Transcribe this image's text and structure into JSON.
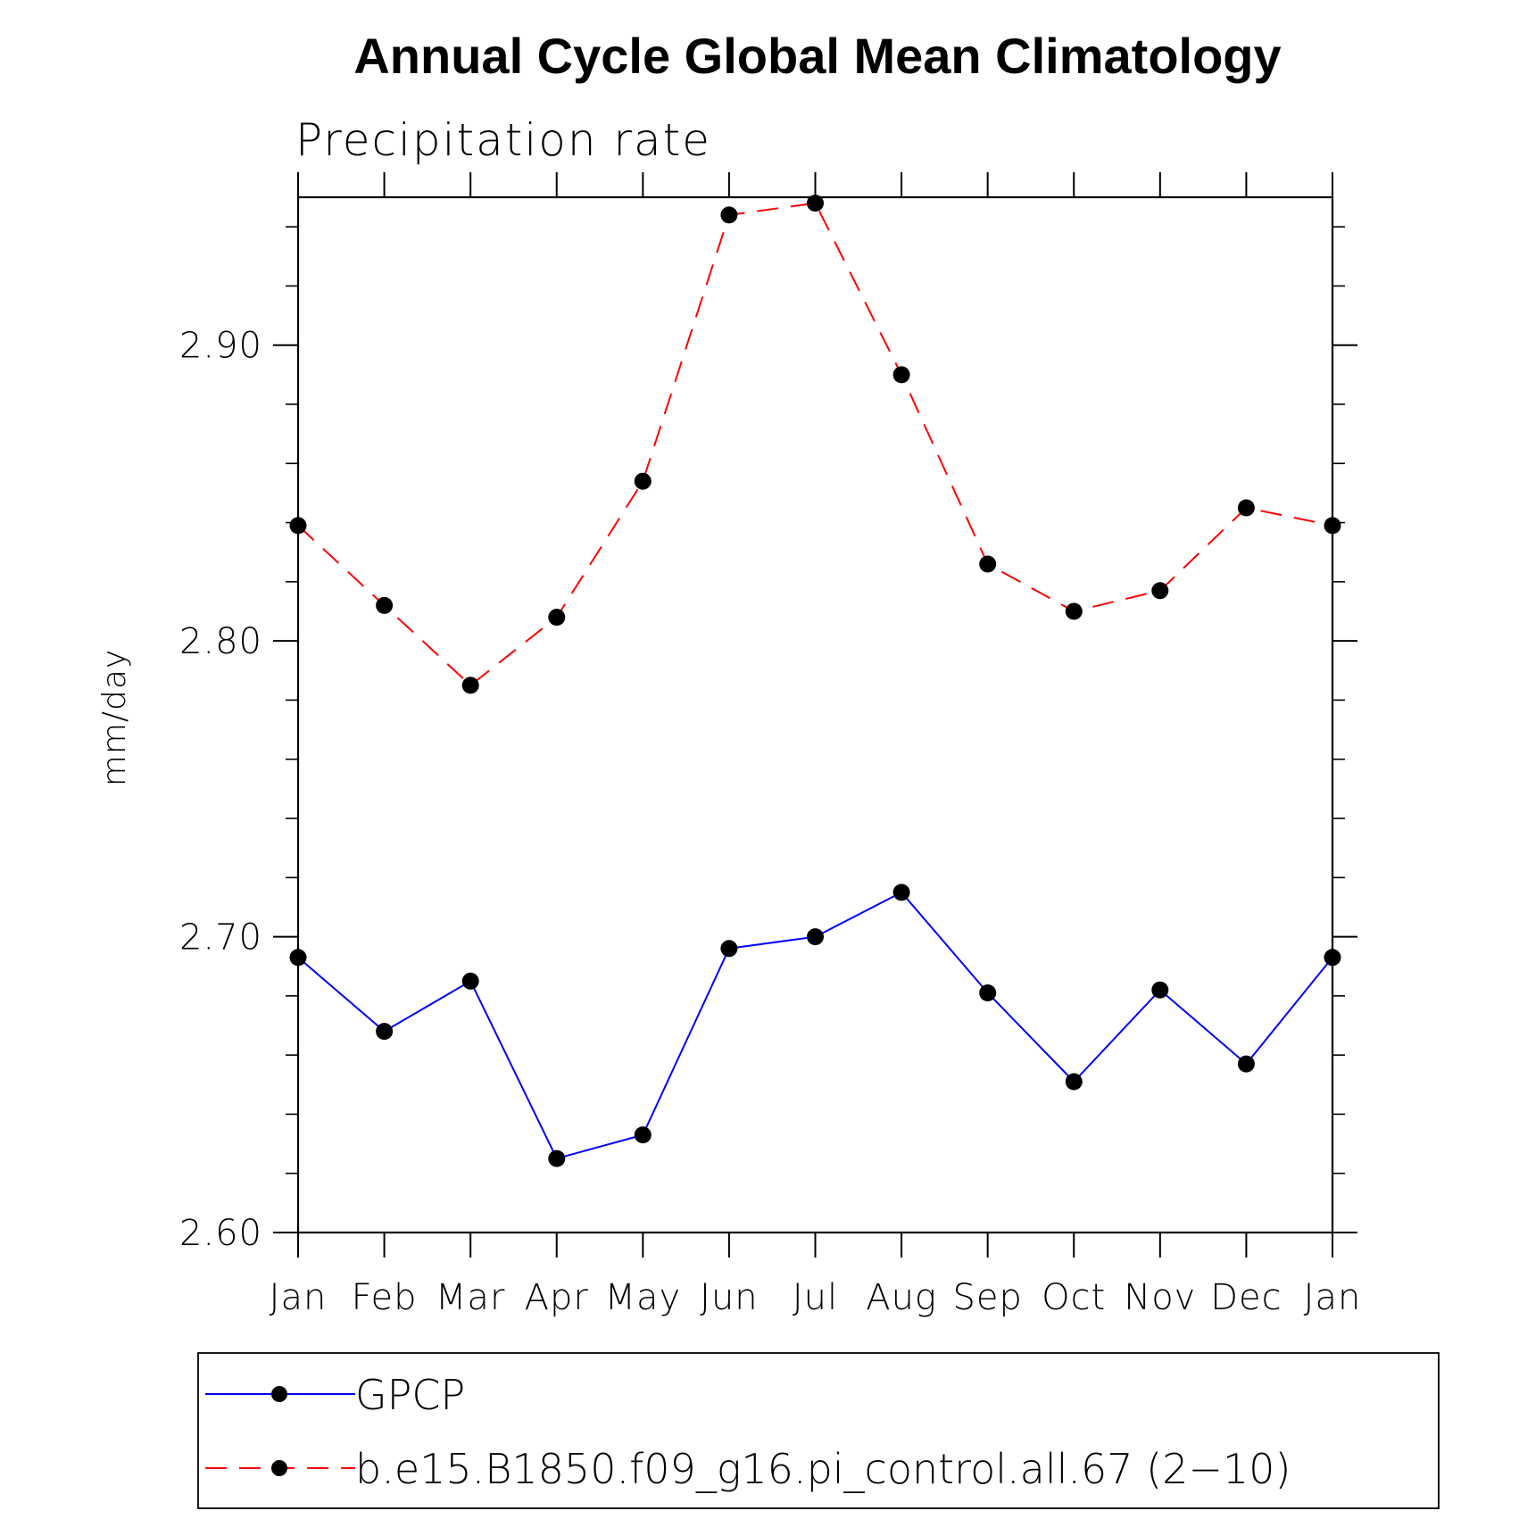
{
  "chart_data": {
    "type": "line",
    "title": "Annual Cycle Global Mean Climatology",
    "subtitle": "Precipitation rate",
    "ylabel": "mm/day",
    "xlabel": "",
    "categories": [
      "Jan",
      "Feb",
      "Mar",
      "Apr",
      "May",
      "Jun",
      "Jul",
      "Aug",
      "Sep",
      "Oct",
      "Nov",
      "Dec",
      "Jan"
    ],
    "ylim": [
      2.6,
      2.95
    ],
    "yticks": [
      2.6,
      2.7,
      2.8,
      2.9
    ],
    "ytick_labels": [
      "2.60",
      "2.70",
      "2.80",
      "2.90"
    ],
    "y_minor_step": 0.02,
    "series": [
      {
        "name": "GPCP",
        "color": "#0000ff",
        "dash": "solid",
        "marker": "circle",
        "values": [
          2.693,
          2.668,
          2.685,
          2.625,
          2.633,
          2.696,
          2.7,
          2.715,
          2.681,
          2.651,
          2.682,
          2.657,
          2.693
        ]
      },
      {
        "name": "b.e15.B1850.f09_g16.pi_control.all.67 (2−10)",
        "color": "#ff0000",
        "dash": "dashed",
        "marker": "circle",
        "values": [
          2.839,
          2.812,
          2.785,
          2.808,
          2.854,
          2.944,
          2.948,
          2.89,
          2.826,
          2.81,
          2.817,
          2.845,
          2.839
        ]
      }
    ],
    "legend": {
      "placement": "bottom",
      "frame": true
    },
    "grid": false
  }
}
